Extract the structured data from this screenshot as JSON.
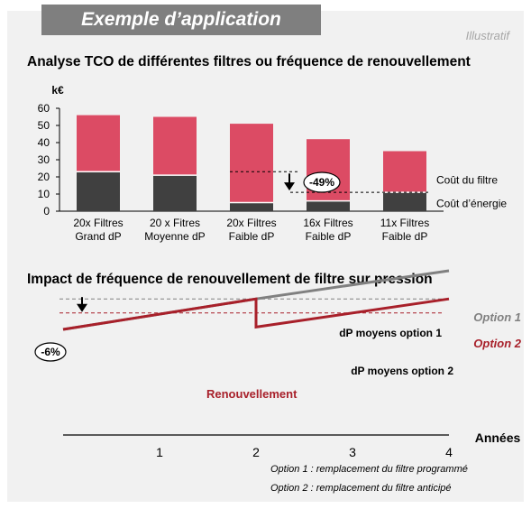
{
  "header": {
    "badge": "Exemple d’application",
    "tag": "Illustratif"
  },
  "chart_data": [
    {
      "type": "bar",
      "title": "Analyse TCO de différentes filtres ou fréquence de renouvellement",
      "ylabel": "k€",
      "ylim": [
        0,
        60
      ],
      "yticks": [
        0,
        10,
        20,
        30,
        40,
        50,
        60
      ],
      "grid": false,
      "stacked": true,
      "categories": [
        "20x Filtres\nGrand dP",
        "20 x Fitres\nMoyenne dP",
        "20x Filtres\nFaible dP",
        "16x Filtres\nFaible dP",
        "11x Filtres\nFaible dP"
      ],
      "series": [
        {
          "name": "Coût d’énergie",
          "values": [
            23,
            21,
            5,
            6,
            11
          ],
          "color": "#404040"
        },
        {
          "name": "Coût du filtre",
          "values": [
            33,
            34,
            46,
            36,
            24
          ],
          "color": "#dc4b64"
        }
      ],
      "annotation": {
        "label": "-49%"
      }
    },
    {
      "type": "line",
      "title": "Impact de fréquence de renouvellement de filtre sur pression",
      "xlabel": "Années",
      "xticks": [
        1,
        2,
        3,
        4
      ],
      "series": [
        {
          "name": "Option 1",
          "color": "#808080",
          "points": [
            [
              0,
              3
            ],
            [
              2,
              4.3
            ],
            [
              4,
              5.5
            ]
          ]
        },
        {
          "name": "Option 2",
          "color": "#a8202a",
          "points": [
            [
              0,
              3
            ],
            [
              2,
              4.3
            ],
            [
              2,
              3.1
            ],
            [
              4,
              4.3
            ]
          ]
        }
      ],
      "reference_lines": [
        {
          "label": "dP moyens option 1",
          "color": "#808080"
        },
        {
          "label": "dP moyens option 2",
          "color": "#a8202a"
        }
      ],
      "annotations": {
        "drop": "-6%",
        "renewal": "Renouvellement"
      },
      "notes": [
        "Option 1 : remplacement du filtre programmé",
        "Option 2 : remplacement du filtre anticipé"
      ]
    }
  ]
}
